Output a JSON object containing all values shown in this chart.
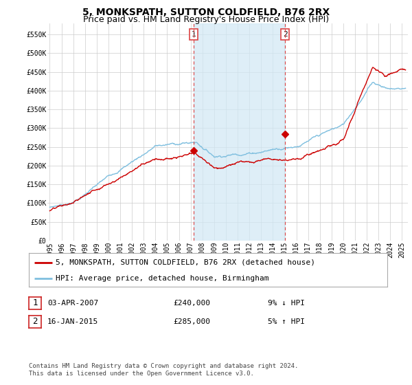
{
  "title": "5, MONKSPATH, SUTTON COLDFIELD, B76 2RX",
  "subtitle": "Price paid vs. HM Land Registry's House Price Index (HPI)",
  "ylabel_ticks": [
    "£0",
    "£50K",
    "£100K",
    "£150K",
    "£200K",
    "£250K",
    "£300K",
    "£350K",
    "£400K",
    "£450K",
    "£500K",
    "£550K"
  ],
  "ytick_values": [
    0,
    50000,
    100000,
    150000,
    200000,
    250000,
    300000,
    350000,
    400000,
    450000,
    500000,
    550000
  ],
  "ylim": [
    0,
    580000
  ],
  "xlim_start": 1994.8,
  "xlim_end": 2025.5,
  "sale1_x": 2007.25,
  "sale1_y": 240000,
  "sale2_x": 2015.04,
  "sale2_y": 285000,
  "legend_line1": "5, MONKSPATH, SUTTON COLDFIELD, B76 2RX (detached house)",
  "legend_line2": "HPI: Average price, detached house, Birmingham",
  "table_row1_date": "03-APR-2007",
  "table_row1_price": "£240,000",
  "table_row1_hpi": "9% ↓ HPI",
  "table_row2_date": "16-JAN-2015",
  "table_row2_price": "£285,000",
  "table_row2_hpi": "5% ↑ HPI",
  "footer": "Contains HM Land Registry data © Crown copyright and database right 2024.\nThis data is licensed under the Open Government Licence v3.0.",
  "hpi_color": "#7fbfdf",
  "hpi_fill_color": "#d0e8f5",
  "price_color": "#cc0000",
  "sale_marker_color": "#cc0000",
  "dashed_line_color": "#dd4444",
  "grid_color": "#cccccc",
  "background_color": "#ffffff",
  "title_fontsize": 10,
  "subtitle_fontsize": 9,
  "tick_fontsize": 7,
  "legend_fontsize": 8,
  "table_fontsize": 8,
  "footer_fontsize": 6.5
}
